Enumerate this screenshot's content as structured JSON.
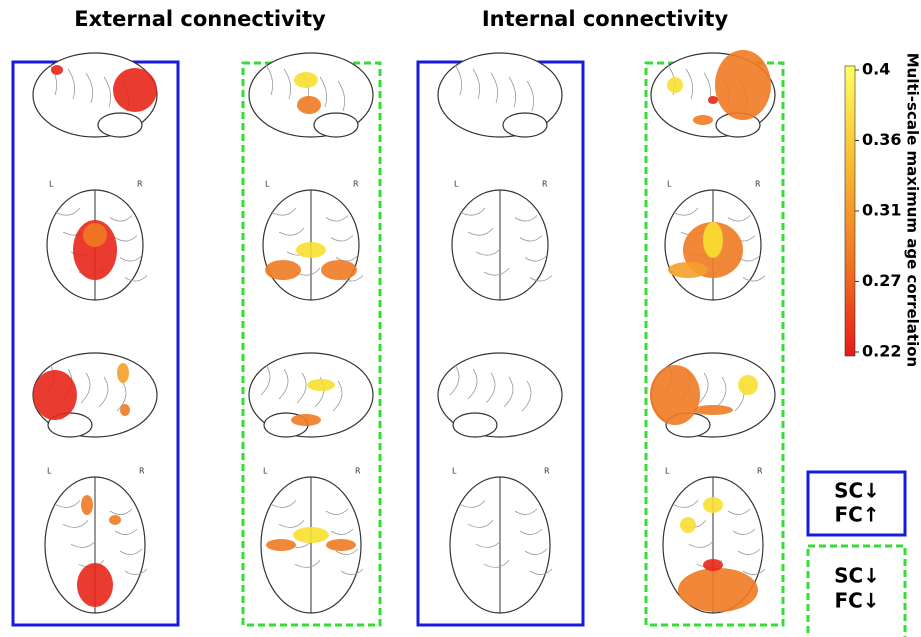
{
  "headers": [
    "External connectivity",
    "Internal connectivity"
  ],
  "colorbar": {
    "label": "Multi-scale maximum age correlation",
    "ticks": [
      "0.4",
      "0.36",
      "0.31",
      "0.27",
      "0.22"
    ]
  },
  "orientation": [
    "L",
    "R"
  ],
  "legend": [
    {
      "line1": "SC↓",
      "line2": "FC↑"
    },
    {
      "line1": "SC↓",
      "line2": "FC↓"
    }
  ]
}
